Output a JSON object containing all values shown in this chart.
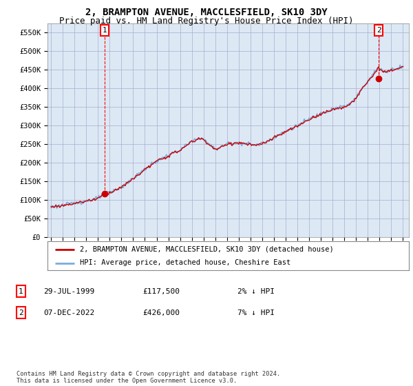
{
  "title": "2, BRAMPTON AVENUE, MACCLESFIELD, SK10 3DY",
  "subtitle": "Price paid vs. HM Land Registry's House Price Index (HPI)",
  "ylim": [
    0,
    575000
  ],
  "yticks": [
    0,
    50000,
    100000,
    150000,
    200000,
    250000,
    300000,
    350000,
    400000,
    450000,
    500000,
    550000
  ],
  "ytick_labels": [
    "£0",
    "£50K",
    "£100K",
    "£150K",
    "£200K",
    "£250K",
    "£300K",
    "£350K",
    "£400K",
    "£450K",
    "£500K",
    "£550K"
  ],
  "xlim_start": 1994.7,
  "xlim_end": 2025.5,
  "sale1_date": 1999.57,
  "sale1_price": 117500,
  "sale2_date": 2022.92,
  "sale2_price": 426000,
  "sale1_label": "1",
  "sale2_label": "2",
  "legend_line1": "2, BRAMPTON AVENUE, MACCLESFIELD, SK10 3DY (detached house)",
  "legend_line2": "HPI: Average price, detached house, Cheshire East",
  "table_row1": [
    "1",
    "29-JUL-1999",
    "£117,500",
    "2% ↓ HPI"
  ],
  "table_row2": [
    "2",
    "07-DEC-2022",
    "£426,000",
    "7% ↓ HPI"
  ],
  "footnote": "Contains HM Land Registry data © Crown copyright and database right 2024.\nThis data is licensed under the Open Government Licence v3.0.",
  "hpi_color": "#7aaddc",
  "price_color": "#cc0000",
  "marker_color": "#cc0000",
  "chart_bg": "#dce9f5",
  "background_color": "#ffffff",
  "grid_color": "#aaaacc",
  "title_fontsize": 10,
  "subtitle_fontsize": 9
}
